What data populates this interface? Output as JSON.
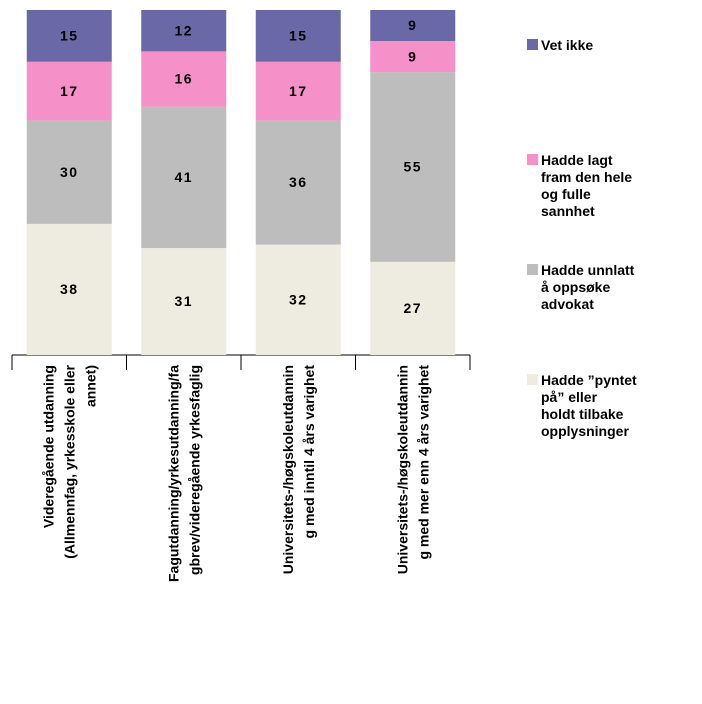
{
  "chart_data": {
    "type": "stacked_bar",
    "categories": [
      "Videregående utdanning (Allmennfag, yrkesskole eller annet)",
      "Fagutdanning/yrkesutdanning/fagbrev/videregående yrkesfaglig",
      "Universitets-/høgskoleutdanning med inntil 4 års varighet",
      "Universitets-/høgskoleutdanning med mer enn 4 års varighet"
    ],
    "series": [
      {
        "name": "Hadde ”pyntet på” eller holdt tilbake opplysninger",
        "color": "#eeece1",
        "values": [
          38,
          31,
          32,
          27
        ]
      },
      {
        "name": "Hadde unnlatt å oppsøke advokat",
        "color": "#bdbdbd",
        "values": [
          30,
          41,
          36,
          55
        ]
      },
      {
        "name": "Hadde lagt fram den hele og fulle sannhet",
        "color": "#f590c8",
        "values": [
          17,
          16,
          17,
          9
        ]
      },
      {
        "name": "Vet ikke",
        "color": "#6b68a8",
        "values": [
          15,
          12,
          15,
          9
        ]
      }
    ]
  }
}
